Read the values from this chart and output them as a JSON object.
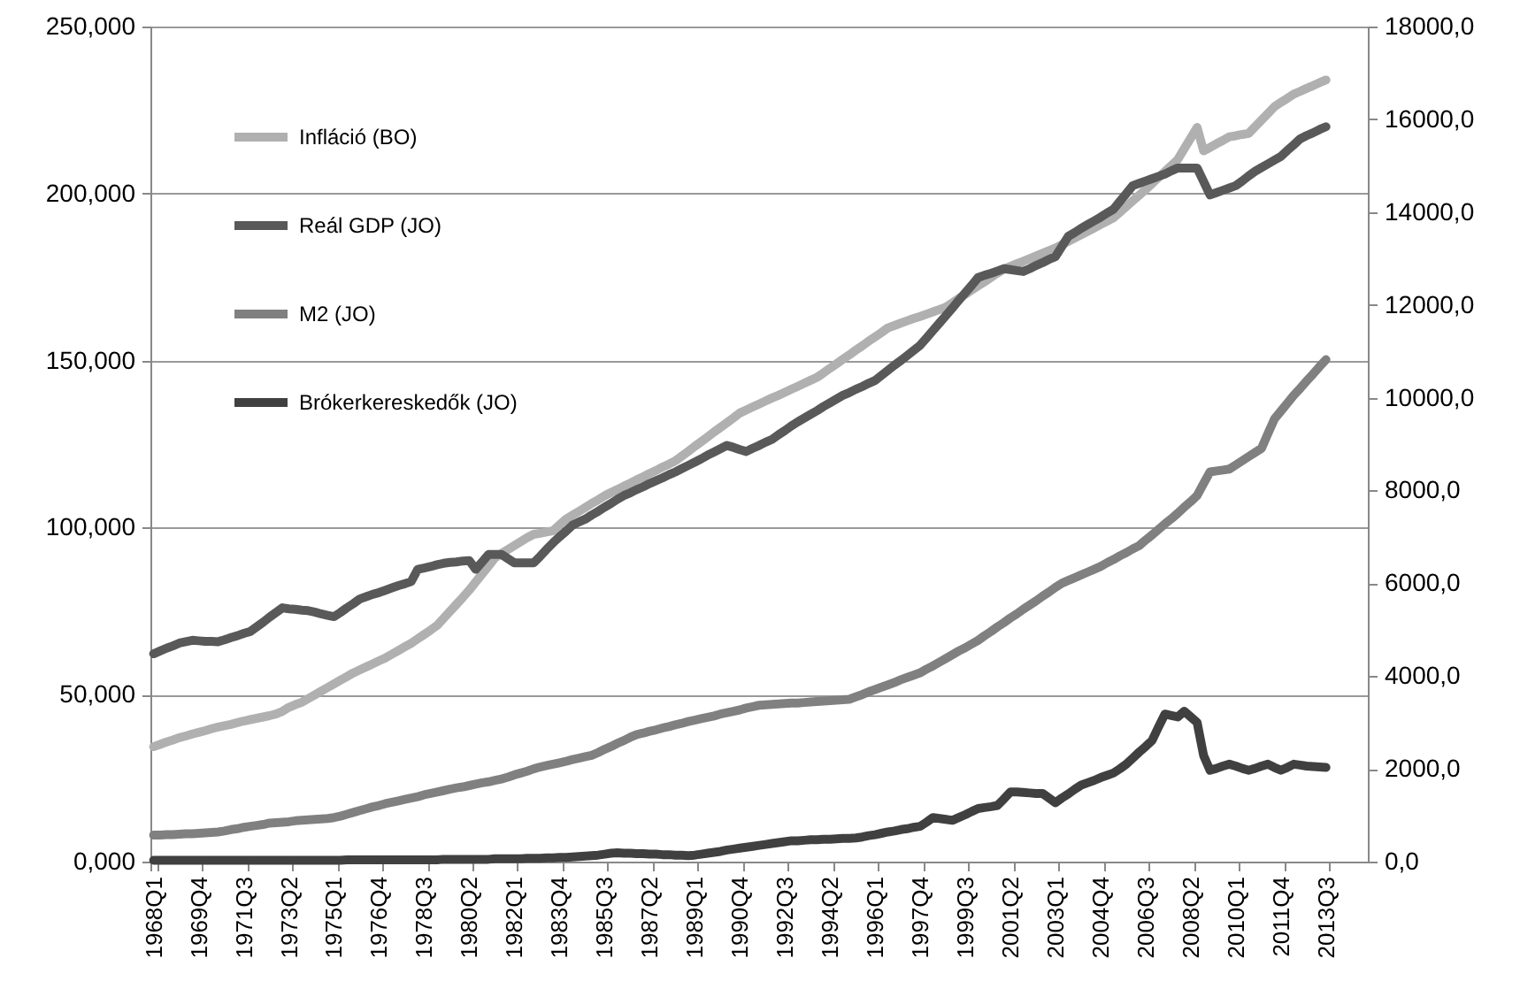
{
  "chart_data": {
    "type": "line",
    "categories": [
      "1968Q1",
      null,
      null,
      null,
      null,
      null,
      null,
      "1969Q4",
      null,
      null,
      null,
      null,
      null,
      null,
      "1971Q3",
      null,
      null,
      null,
      null,
      null,
      null,
      "1973Q2",
      null,
      null,
      null,
      null,
      null,
      null,
      "1975Q1",
      null,
      null,
      null,
      null,
      null,
      null,
      "1976Q4",
      null,
      null,
      null,
      null,
      null,
      null,
      "1978Q3",
      null,
      null,
      null,
      null,
      null,
      null,
      "1980Q2",
      null,
      null,
      null,
      null,
      null,
      null,
      "1982Q1",
      null,
      null,
      null,
      null,
      null,
      null,
      "1983Q4",
      null,
      null,
      null,
      null,
      null,
      null,
      "1985Q3",
      null,
      null,
      null,
      null,
      null,
      null,
      "1987Q2",
      null,
      null,
      null,
      null,
      null,
      null,
      "1989Q1",
      null,
      null,
      null,
      null,
      null,
      null,
      "1990Q4",
      null,
      null,
      null,
      null,
      null,
      null,
      "1992Q3",
      null,
      null,
      null,
      null,
      null,
      null,
      "1994Q2",
      null,
      null,
      null,
      null,
      null,
      null,
      "1996Q1",
      null,
      null,
      null,
      null,
      null,
      null,
      "1997Q4",
      null,
      null,
      null,
      null,
      null,
      null,
      "1999Q3",
      null,
      null,
      null,
      null,
      null,
      null,
      "2001Q2",
      null,
      null,
      null,
      null,
      null,
      null,
      "2003Q1",
      null,
      null,
      null,
      null,
      null,
      null,
      "2004Q4",
      null,
      null,
      null,
      null,
      null,
      null,
      "2006Q3",
      null,
      null,
      null,
      null,
      null,
      null,
      "2008Q2",
      null,
      null,
      null,
      null,
      null,
      null,
      "2010Q1",
      null,
      null,
      null,
      null,
      null,
      null,
      "2011Q4",
      null,
      null,
      null,
      null,
      null,
      null,
      "2013Q3",
      null,
      null,
      null,
      null,
      null,
      null
    ],
    "series": [
      {
        "name": "Infláció (BO)",
        "color": "#b0b0b0",
        "values": [
          34.4,
          35.1,
          35.8,
          36.4,
          37.1,
          37.6,
          38.2,
          38.7,
          39.2,
          39.8,
          40.3,
          40.7,
          41.1,
          41.6,
          42.1,
          42.5,
          42.9,
          43.3,
          43.7,
          44.2,
          45.0,
          46.2,
          47.0,
          47.7,
          48.8,
          49.9,
          51.0,
          52.1,
          53.2,
          54.3,
          55.4,
          56.5,
          57.4,
          58.3,
          59.2,
          60.1,
          61.0,
          62.1,
          63.2,
          64.3,
          65.4,
          66.7,
          68.0,
          69.3,
          70.7,
          72.8,
          74.9,
          77.0,
          79.1,
          81.3,
          83.7,
          86.1,
          88.5,
          91.0,
          92.2,
          93.4,
          94.6,
          95.8,
          97.0,
          98.0,
          98.3,
          98.7,
          99.0,
          100.8,
          102.5,
          103.7,
          104.8,
          106.0,
          107.2,
          108.3,
          109.5,
          110.5,
          111.4,
          112.4,
          113.3,
          114.3,
          115.2,
          116.2,
          117.1,
          118.1,
          119.0,
          120.0,
          121.4,
          122.8,
          124.3,
          125.7,
          127.1,
          128.6,
          130.0,
          131.4,
          132.8,
          134.3,
          135.2,
          136.1,
          137.0,
          137.9,
          138.8,
          139.6,
          140.5,
          141.4,
          142.3,
          143.2,
          144.1,
          145.0,
          146.3,
          147.7,
          149.0,
          150.4,
          151.7,
          153.1,
          154.4,
          155.8,
          157.1,
          158.4,
          159.8,
          160.5,
          161.2,
          161.9,
          162.6,
          163.2,
          163.9,
          164.6,
          165.3,
          166.0,
          167.3,
          168.6,
          169.8,
          171.1,
          172.4,
          173.6,
          174.9,
          176.2,
          177.4,
          178.2,
          179.0,
          179.7,
          180.5,
          181.3,
          182.1,
          182.9,
          183.7,
          184.7,
          185.7,
          186.7,
          187.7,
          188.7,
          189.7,
          190.7,
          191.7,
          192.7,
          194.4,
          196.1,
          197.8,
          199.5,
          201.2,
          203.0,
          204.8,
          206.6,
          208.4,
          210.2,
          213.4,
          216.6,
          219.8,
          212.8,
          213.8,
          214.9,
          215.9,
          217.0,
          217.3,
          217.7,
          218.0,
          220.0,
          222.0,
          224.0,
          226.0,
          227.3,
          228.5,
          229.8,
          230.6,
          231.5,
          232.3,
          233.2,
          234.0,
          null,
          null,
          null,
          null,
          null,
          null
        ]
      },
      {
        "name": "Reál GDP (JO)",
        "color": "#595959",
        "axis": "y2",
        "values": [
          4480,
          4540,
          4600,
          4650,
          4710,
          4740,
          4770,
          4760,
          4750,
          4750,
          4740,
          4780,
          4830,
          4870,
          4920,
          4960,
          5060,
          5160,
          5270,
          5370,
          5470,
          5450,
          5440,
          5420,
          5410,
          5380,
          5340,
          5310,
          5280,
          5370,
          5470,
          5560,
          5660,
          5710,
          5760,
          5800,
          5850,
          5900,
          5950,
          5990,
          6040,
          6300,
          6330,
          6360,
          6400,
          6430,
          6450,
          6460,
          6480,
          6490,
          6300,
          6460,
          6620,
          6620,
          6620,
          6530,
          6440,
          6440,
          6440,
          6440,
          6580,
          6730,
          6870,
          7000,
          7120,
          7250,
          7320,
          7380,
          7470,
          7550,
          7640,
          7720,
          7810,
          7890,
          7950,
          8020,
          8080,
          8150,
          8210,
          8270,
          8340,
          8400,
          8470,
          8540,
          8610,
          8680,
          8760,
          8830,
          8900,
          8970,
          8930,
          8880,
          8840,
          8910,
          8970,
          9040,
          9100,
          9200,
          9290,
          9390,
          9480,
          9560,
          9640,
          9720,
          9810,
          9890,
          9970,
          10050,
          10110,
          10180,
          10240,
          10310,
          10370,
          10480,
          10590,
          10700,
          10800,
          10910,
          11020,
          11130,
          11290,
          11450,
          11610,
          11770,
          11930,
          12100,
          12260,
          12420,
          12590,
          12640,
          12680,
          12730,
          12780,
          12760,
          12740,
          12720,
          12780,
          12850,
          12910,
          12980,
          13040,
          13260,
          13480,
          13560,
          13650,
          13730,
          13810,
          13890,
          13980,
          14060,
          14230,
          14400,
          14570,
          14620,
          14670,
          14720,
          14770,
          14820,
          14890,
          14950,
          14950,
          14950,
          14950,
          14660,
          14370,
          14420,
          14470,
          14520,
          14570,
          14670,
          14780,
          14880,
          14960,
          15040,
          15120,
          15200,
          15330,
          15450,
          15580,
          15650,
          15710,
          15780,
          15840,
          null,
          null,
          null,
          null,
          null,
          null
        ]
      },
      {
        "name": "M2 (JO)",
        "color": "#808080",
        "axis": "y2",
        "values": [
          570,
          570,
          580,
          580,
          590,
          600,
          600,
          610,
          620,
          630,
          640,
          660,
          690,
          710,
          740,
          760,
          780,
          800,
          830,
          840,
          850,
          860,
          880,
          890,
          900,
          910,
          920,
          930,
          950,
          980,
          1020,
          1060,
          1100,
          1140,
          1180,
          1210,
          1250,
          1280,
          1310,
          1340,
          1370,
          1400,
          1440,
          1470,
          1500,
          1530,
          1560,
          1590,
          1610,
          1640,
          1670,
          1700,
          1720,
          1750,
          1780,
          1820,
          1870,
          1910,
          1950,
          2000,
          2040,
          2070,
          2100,
          2130,
          2160,
          2200,
          2230,
          2260,
          2290,
          2350,
          2420,
          2480,
          2550,
          2610,
          2680,
          2740,
          2770,
          2810,
          2840,
          2880,
          2910,
          2950,
          2980,
          3020,
          3050,
          3080,
          3110,
          3140,
          3180,
          3210,
          3240,
          3270,
          3310,
          3340,
          3370,
          3380,
          3390,
          3400,
          3410,
          3420,
          3420,
          3430,
          3440,
          3450,
          3460,
          3470,
          3480,
          3490,
          3500,
          3550,
          3600,
          3660,
          3710,
          3760,
          3810,
          3860,
          3920,
          3970,
          4020,
          4070,
          4150,
          4220,
          4300,
          4380,
          4460,
          4540,
          4610,
          4690,
          4770,
          4870,
          4960,
          5060,
          5150,
          5250,
          5340,
          5440,
          5530,
          5620,
          5720,
          5810,
          5910,
          6000,
          6060,
          6120,
          6180,
          6240,
          6300,
          6360,
          6440,
          6510,
          6590,
          6660,
          6740,
          6810,
          6930,
          7040,
          7160,
          7280,
          7390,
          7510,
          7640,
          7760,
          7890,
          8150,
          8400,
          8420,
          8440,
          8460,
          8550,
          8640,
          8730,
          8820,
          8910,
          9230,
          9540,
          9710,
          9880,
          10050,
          10200,
          10360,
          10510,
          10670,
          10820,
          null,
          null,
          null,
          null,
          null,
          null
        ]
      },
      {
        "name": "Brókerkereskedők (JO)",
        "color": "#404040",
        "axis": "y2",
        "values": [
          30,
          30,
          30,
          30,
          30,
          30,
          30,
          30,
          30,
          30,
          30,
          30,
          30,
          30,
          30,
          30,
          30,
          30,
          30,
          30,
          30,
          30,
          30,
          30,
          30,
          30,
          30,
          30,
          30,
          30,
          40,
          40,
          40,
          40,
          40,
          40,
          40,
          40,
          40,
          40,
          40,
          40,
          40,
          40,
          40,
          50,
          50,
          50,
          50,
          50,
          50,
          50,
          50,
          60,
          60,
          60,
          60,
          60,
          70,
          70,
          70,
          80,
          80,
          90,
          90,
          100,
          110,
          120,
          130,
          140,
          160,
          180,
          190,
          180,
          180,
          170,
          170,
          160,
          160,
          150,
          150,
          140,
          140,
          130,
          140,
          160,
          180,
          200,
          220,
          250,
          270,
          290,
          310,
          330,
          350,
          370,
          390,
          410,
          430,
          450,
          450,
          460,
          470,
          470,
          480,
          480,
          490,
          500,
          500,
          510,
          530,
          560,
          580,
          610,
          640,
          660,
          690,
          710,
          740,
          760,
          850,
          950,
          930,
          910,
          890,
          950,
          1010,
          1080,
          1145,
          1165,
          1185,
          1210,
          1350,
          1500,
          1500,
          1490,
          1480,
          1470,
          1470,
          1370,
          1270,
          1370,
          1460,
          1560,
          1650,
          1700,
          1750,
          1810,
          1860,
          1910,
          2000,
          2100,
          2230,
          2360,
          2480,
          2610,
          2900,
          3180,
          3150,
          3120,
          3240,
          3120,
          3000,
          2290,
          1970,
          2010,
          2060,
          2100,
          2060,
          2010,
          1970,
          2010,
          2060,
          2100,
          2030,
          1970,
          2030,
          2100,
          2080,
          2060,
          2050,
          2040,
          2030,
          null,
          null,
          null,
          null,
          null,
          null
        ]
      }
    ],
    "ylim": [
      0,
      250
    ],
    "yticks": [
      {
        "value": 0,
        "label": "0,000"
      },
      {
        "value": 50,
        "label": "50,000"
      },
      {
        "value": 100,
        "label": "100,000"
      },
      {
        "value": 150,
        "label": "150,000"
      },
      {
        "value": 200,
        "label": "200,000"
      },
      {
        "value": 250,
        "label": "250,000"
      }
    ],
    "y2lim": [
      0,
      18000
    ],
    "y2ticks": [
      {
        "value": 0,
        "label": "0,0"
      },
      {
        "value": 2000,
        "label": "2000,0"
      },
      {
        "value": 4000,
        "label": "4000,0"
      },
      {
        "value": 6000,
        "label": "6000,0"
      },
      {
        "value": 8000,
        "label": "8000,0"
      },
      {
        "value": 10000,
        "label": "10000,0"
      },
      {
        "value": 12000,
        "label": "12000,0"
      },
      {
        "value": 14000,
        "label": "14000,0"
      },
      {
        "value": 16000,
        "label": "16000,0"
      },
      {
        "value": 18000,
        "label": "18000,0"
      }
    ],
    "grid": "y",
    "legend": "top left"
  }
}
